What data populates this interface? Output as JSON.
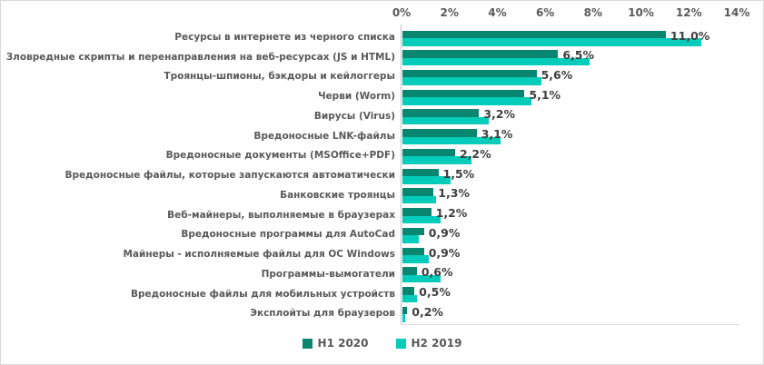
{
  "chart_data": {
    "type": "bar",
    "orientation": "horizontal",
    "title": "",
    "categories": [
      "Ресурсы в интернете из черного списка",
      "Зловредные скрипты и перенаправления на веб-ресурсах (JS и HTML)",
      "Троянцы-шпионы, бэкдоры и кейлоггеры",
      "Черви (Worm)",
      "Вирусы (Virus)",
      "Вредоносные LNK-файлы",
      "Вредоносные документы (MSOffice+PDF)",
      "Вредоносные файлы, которые запускаются автоматически",
      "Банковские троянцы",
      "Веб-майнеры, выполняемые в браузерах",
      "Вредоносные программы для AutoCad",
      "Майнеры - исполняемые файлы для ОС Windows",
      "Программы-вымогатели",
      "Вредоносные файлы для мобильных устройств",
      "Эксплойты для браузеров"
    ],
    "series": [
      {
        "name": "H1 2020",
        "color": "#088670",
        "values": [
          11.0,
          6.5,
          5.6,
          5.1,
          3.2,
          3.1,
          2.2,
          1.5,
          1.3,
          1.2,
          0.9,
          0.9,
          0.6,
          0.5,
          0.2
        ],
        "data_labels": [
          "11,0%",
          "6,5%",
          "5,6%",
          "5,1%",
          "3,2%",
          "3,1%",
          "2,2%",
          "1,5%",
          "1,3%",
          "1,2%",
          "0,9%",
          "0,9%",
          "0,6%",
          "0,5%",
          "0,2%"
        ]
      },
      {
        "name": "H2 2019",
        "color": "#04ccba",
        "values": [
          12.5,
          7.8,
          5.8,
          5.4,
          3.6,
          4.1,
          2.9,
          2.0,
          1.4,
          1.6,
          0.7,
          1.1,
          1.6,
          0.6,
          0.1
        ]
      }
    ],
    "x_axis": {
      "position": "top",
      "min": 0,
      "max": 14,
      "unit": "%",
      "ticks": [
        "0%",
        "2%",
        "4%",
        "6%",
        "8%",
        "10%",
        "12%",
        "14%"
      ]
    },
    "legend": {
      "position": "bottom"
    },
    "grid": false,
    "colors": {
      "axis_text": "#595959",
      "category_text": "#595959",
      "data_label_text": "#3f3f3f",
      "axis_line": "#bfbfbf",
      "plot_bottom_line": "#d9d9d9",
      "border": "#d9d9d9"
    }
  }
}
